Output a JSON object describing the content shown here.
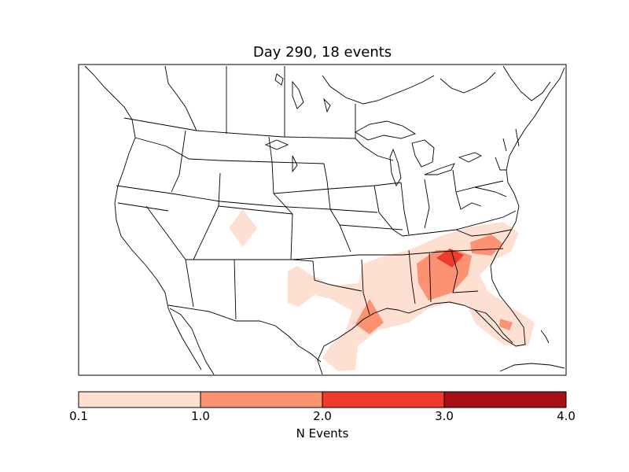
{
  "title": "Day 290, 18 events",
  "colorbar": {
    "label": "N Events",
    "ticks": [
      "0.1",
      "1.0",
      "2.0",
      "3.0",
      "4.0"
    ],
    "bins": [
      {
        "from": 0.1,
        "to": 1.0,
        "color": "#fee0d2"
      },
      {
        "from": 1.0,
        "to": 2.0,
        "color": "#fc9272"
      },
      {
        "from": 2.0,
        "to": 3.0,
        "color": "#ef3b2c"
      },
      {
        "from": 3.0,
        "to": 4.0,
        "color": "#a50f15"
      }
    ]
  },
  "map": {
    "region": "North America (contiguous US)",
    "event_regions": [
      {
        "name": "Colorado-Utah",
        "level": "0.1-1.0"
      },
      {
        "name": "Texas-Louisiana Gulf Coast",
        "level": "0.1-1.0"
      },
      {
        "name": "Louisiana",
        "level": "1.0-2.0"
      },
      {
        "name": "Alabama-Georgia",
        "level": "1.0-2.0"
      },
      {
        "name": "Georgia-South Carolina",
        "level": "2.0-3.0"
      },
      {
        "name": "South Carolina",
        "level": "1.0-2.0"
      },
      {
        "name": "Florida",
        "level": "0.1-1.0"
      }
    ]
  }
}
